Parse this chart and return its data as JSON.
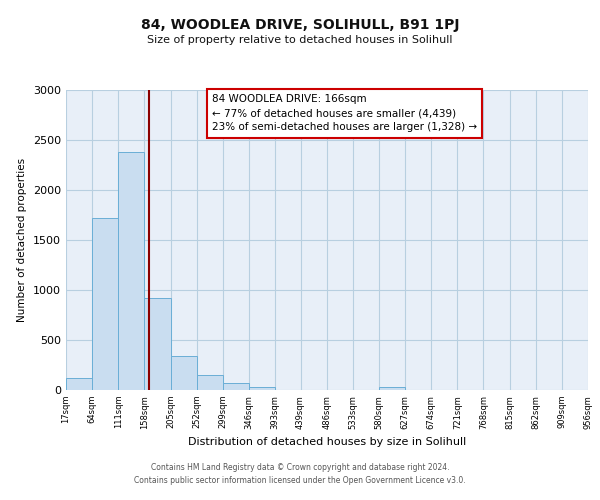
{
  "title1": "84, WOODLEA DRIVE, SOLIHULL, B91 1PJ",
  "title2": "Size of property relative to detached houses in Solihull",
  "xlabel": "Distribution of detached houses by size in Solihull",
  "ylabel": "Number of detached properties",
  "bar_edges": [
    17,
    64,
    111,
    158,
    205,
    252,
    299,
    346,
    393,
    439,
    486,
    533,
    580,
    627,
    674,
    721,
    768,
    815,
    862,
    909,
    956
  ],
  "bar_values": [
    120,
    1720,
    2380,
    925,
    340,
    155,
    70,
    30,
    0,
    0,
    0,
    0,
    30,
    0,
    0,
    0,
    0,
    0,
    0,
    0
  ],
  "bar_color": "#c9ddf0",
  "bar_edgecolor": "#6aaed6",
  "bar_linewidth": 0.7,
  "vline_x": 166,
  "vline_color": "#8b0000",
  "annotation_text": "84 WOODLEA DRIVE: 166sqm\n← 77% of detached houses are smaller (4,439)\n23% of semi-detached houses are larger (1,328) →",
  "annotation_box_facecolor": "#ffffff",
  "annotation_box_edgecolor": "#cc0000",
  "ylim": [
    0,
    3000
  ],
  "yticks": [
    0,
    500,
    1000,
    1500,
    2000,
    2500,
    3000
  ],
  "ax_facecolor": "#e8eff8",
  "background_color": "#ffffff",
  "grid_color": "#b8cfe0",
  "footer1": "Contains HM Land Registry data © Crown copyright and database right 2024.",
  "footer2": "Contains public sector information licensed under the Open Government Licence v3.0.",
  "tick_labels": [
    "17sqm",
    "64sqm",
    "111sqm",
    "158sqm",
    "205sqm",
    "252sqm",
    "299sqm",
    "346sqm",
    "393sqm",
    "439sqm",
    "486sqm",
    "533sqm",
    "580sqm",
    "627sqm",
    "674sqm",
    "721sqm",
    "768sqm",
    "815sqm",
    "862sqm",
    "909sqm",
    "956sqm"
  ]
}
